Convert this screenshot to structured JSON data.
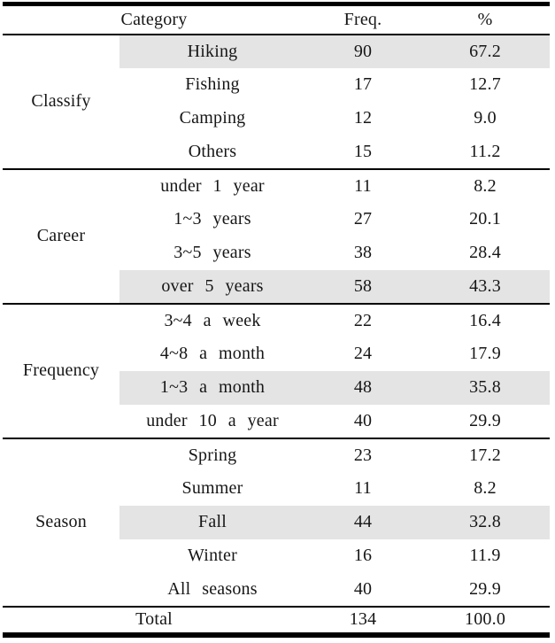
{
  "table": {
    "headers": {
      "category": "Category",
      "freq": "Freq.",
      "pct": "%"
    },
    "sections": [
      {
        "group": "Classify",
        "rows": [
          {
            "label": "Hiking",
            "freq": "90",
            "pct": "67.2",
            "highlight": true
          },
          {
            "label": "Fishing",
            "freq": "17",
            "pct": "12.7",
            "highlight": false
          },
          {
            "label": "Camping",
            "freq": "12",
            "pct": "9.0",
            "highlight": false
          },
          {
            "label": "Others",
            "freq": "15",
            "pct": "11.2",
            "highlight": false
          }
        ]
      },
      {
        "group": "Career",
        "rows": [
          {
            "label": "under 1 year",
            "freq": "11",
            "pct": "8.2",
            "highlight": false
          },
          {
            "label": "1~3 years",
            "freq": "27",
            "pct": "20.1",
            "highlight": false
          },
          {
            "label": "3~5 years",
            "freq": "38",
            "pct": "28.4",
            "highlight": false
          },
          {
            "label": "over 5 years",
            "freq": "58",
            "pct": "43.3",
            "highlight": true
          }
        ]
      },
      {
        "group": "Frequency",
        "rows": [
          {
            "label": "3~4 a week",
            "freq": "22",
            "pct": "16.4",
            "highlight": false
          },
          {
            "label": "4~8 a month",
            "freq": "24",
            "pct": "17.9",
            "highlight": false
          },
          {
            "label": "1~3 a month",
            "freq": "48",
            "pct": "35.8",
            "highlight": true
          },
          {
            "label": "under 10 a year",
            "freq": "40",
            "pct": "29.9",
            "highlight": false
          }
        ]
      },
      {
        "group": "Season",
        "rows": [
          {
            "label": "Spring",
            "freq": "23",
            "pct": "17.2",
            "highlight": false
          },
          {
            "label": "Summer",
            "freq": "11",
            "pct": "8.2",
            "highlight": false
          },
          {
            "label": "Fall",
            "freq": "44",
            "pct": "32.8",
            "highlight": true
          },
          {
            "label": "Winter",
            "freq": "16",
            "pct": "11.9",
            "highlight": false
          },
          {
            "label": "All seasons",
            "freq": "40",
            "pct": "29.9",
            "highlight": false
          }
        ]
      }
    ],
    "total": {
      "label": "Total",
      "freq": "134",
      "pct": "100.0"
    }
  },
  "colors": {
    "highlight": "#e4e4e4",
    "border": "#000000",
    "text": "#161616"
  }
}
